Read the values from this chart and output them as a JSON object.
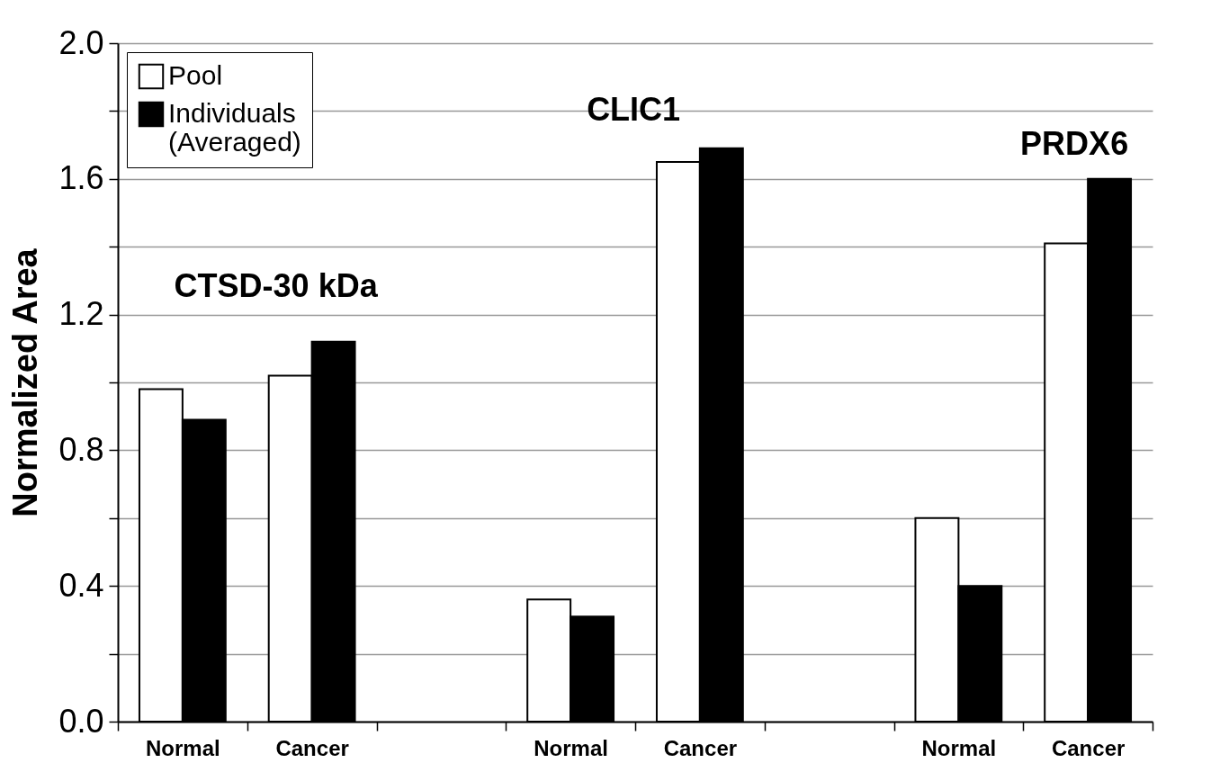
{
  "chart_data": {
    "type": "bar",
    "ylabel": "Normalized Area",
    "categories": [
      "Normal",
      "Cancer",
      null,
      "Normal",
      "Cancer",
      null,
      "Normal",
      "Cancer"
    ],
    "series": [
      {
        "name": "Pool",
        "color": "#ffffff",
        "values": [
          0.98,
          1.02,
          null,
          0.36,
          1.65,
          null,
          0.6,
          1.41
        ]
      },
      {
        "name": "Individuals (Averaged)",
        "color": "#000000",
        "values": [
          0.89,
          1.12,
          null,
          0.31,
          1.69,
          null,
          0.4,
          1.6
        ]
      }
    ],
    "ylim": [
      0,
      2
    ],
    "yticks": [
      {
        "value": 0,
        "label": "0.0"
      },
      {
        "value": 0.2,
        "label": null
      },
      {
        "value": 0.4,
        "label": "0.4"
      },
      {
        "value": 0.6,
        "label": null
      },
      {
        "value": 0.8,
        "label": "0.8"
      },
      {
        "value": 1,
        "label": null
      },
      {
        "value": 1.2,
        "label": "1.2"
      },
      {
        "value": 1.4,
        "label": null
      },
      {
        "value": 1.6,
        "label": "1.6"
      },
      {
        "value": 1.8,
        "label": null
      },
      {
        "value": 2,
        "label": "2.0"
      }
    ],
    "annotations": [
      "CTSD-30 kDa",
      "CLIC1",
      "PRDX6"
    ],
    "grid": "y",
    "legend": "top left"
  }
}
